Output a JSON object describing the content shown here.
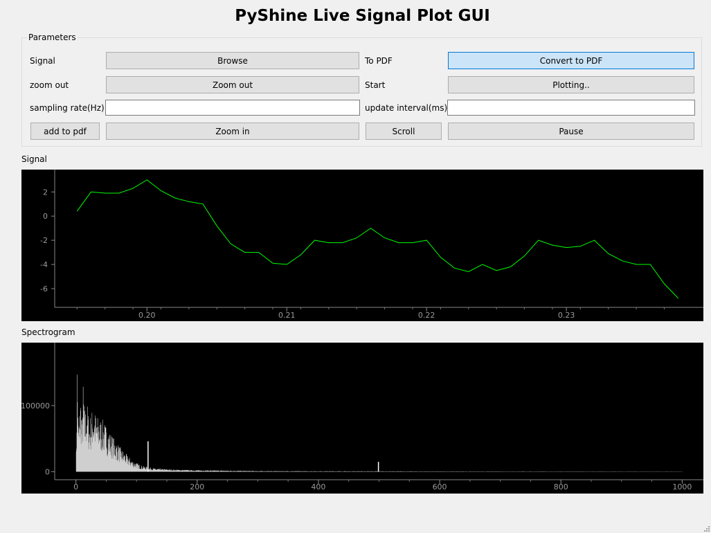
{
  "window": {
    "title": "PyShine Live Signal Plot GUI"
  },
  "parameters": {
    "legend": "Parameters",
    "signal_label": "Signal",
    "browse_label": "Browse",
    "to_pdf_label": "To PDF",
    "convert_label": "Convert to PDF",
    "zoom_out_label": "zoom out",
    "zoom_out_button": "Zoom out",
    "start_label": "Start",
    "plotting_button": "Plotting..",
    "sampling_rate_label": "sampling rate(Hz)",
    "sampling_rate_value": "",
    "update_interval_label": "update interval(ms)",
    "update_interval_value": "",
    "add_to_pdf_button": "add to pdf",
    "zoom_in_button": "Zoom in",
    "scroll_button": "Scroll",
    "pause_button": "Pause"
  },
  "colors": {
    "signal_line": "#00ff00",
    "spectrum": "#ffffff",
    "accent": "#0078d7"
  },
  "chart_data": [
    {
      "type": "line",
      "title": "Signal",
      "xlim": [
        0.1934,
        0.2398
      ],
      "ylim": [
        -7.55,
        3.85
      ],
      "xticks": [
        0.2,
        0.21,
        0.22,
        0.23
      ],
      "xtick_labels": [
        "0.20",
        "0.21",
        "0.22",
        "0.23"
      ],
      "yticks": [
        2,
        0,
        -2,
        -4,
        -6
      ],
      "ytick_labels": [
        "2",
        "0",
        "-2",
        "-4",
        "-6"
      ],
      "series": [
        {
          "x": [
            0.195,
            0.196,
            0.197,
            0.198,
            0.199,
            0.2,
            0.201,
            0.202,
            0.203,
            0.204,
            0.205,
            0.206,
            0.207,
            0.208,
            0.209,
            0.21,
            0.211,
            0.212,
            0.213,
            0.214,
            0.215,
            0.216,
            0.217,
            0.218,
            0.219,
            0.22,
            0.221,
            0.222,
            0.223,
            0.224,
            0.225,
            0.226,
            0.227,
            0.228,
            0.229,
            0.23,
            0.231,
            0.232,
            0.233,
            0.234,
            0.235,
            0.236,
            0.237,
            0.238
          ],
          "y": [
            0.4,
            2.0,
            1.9,
            1.9,
            2.3,
            3.0,
            2.1,
            1.5,
            1.2,
            1.0,
            -0.8,
            -2.3,
            -3.0,
            -3.0,
            -3.9,
            -4.0,
            -3.2,
            -2.0,
            -2.2,
            -2.2,
            -1.8,
            -1.0,
            -1.8,
            -2.2,
            -2.2,
            -2.0,
            -3.4,
            -4.3,
            -4.6,
            -4.0,
            -4.5,
            -4.2,
            -3.3,
            -2.0,
            -2.4,
            -2.6,
            -2.5,
            -2.0,
            -3.1,
            -3.7,
            -4.0,
            -4.0,
            -5.6,
            -6.8
          ]
        }
      ]
    },
    {
      "type": "bar",
      "title": "Spectrogram",
      "xlim": [
        -35,
        1035
      ],
      "ylim": [
        -12000,
        195000
      ],
      "xticks": [
        0,
        200,
        400,
        600,
        800,
        1000
      ],
      "xtick_labels": [
        "0",
        "200",
        "400",
        "600",
        "800",
        "1000"
      ],
      "yticks": [
        100000,
        0
      ],
      "ytick_labels": [
        "100000",
        "0"
      ],
      "envelope_points": [
        [
          0,
          0
        ],
        [
          1,
          65000
        ],
        [
          2,
          178000
        ],
        [
          4,
          70000
        ],
        [
          8,
          120000
        ],
        [
          10,
          75000
        ],
        [
          12,
          135000
        ],
        [
          15,
          90000
        ],
        [
          18,
          110000
        ],
        [
          22,
          80000
        ],
        [
          28,
          98000
        ],
        [
          35,
          85000
        ],
        [
          45,
          78000
        ],
        [
          55,
          62000
        ],
        [
          65,
          48000
        ],
        [
          75,
          35000
        ],
        [
          85,
          25000
        ],
        [
          95,
          16000
        ],
        [
          110,
          9000
        ],
        [
          130,
          5000
        ],
        [
          160,
          3500
        ],
        [
          200,
          2500
        ],
        [
          250,
          1800
        ],
        [
          300,
          1200
        ],
        [
          400,
          900
        ],
        [
          500,
          800
        ],
        [
          600,
          600
        ],
        [
          800,
          500
        ],
        [
          1000,
          400
        ]
      ],
      "spikes": [
        [
          119,
          46000
        ],
        [
          499,
          15000
        ]
      ]
    }
  ]
}
